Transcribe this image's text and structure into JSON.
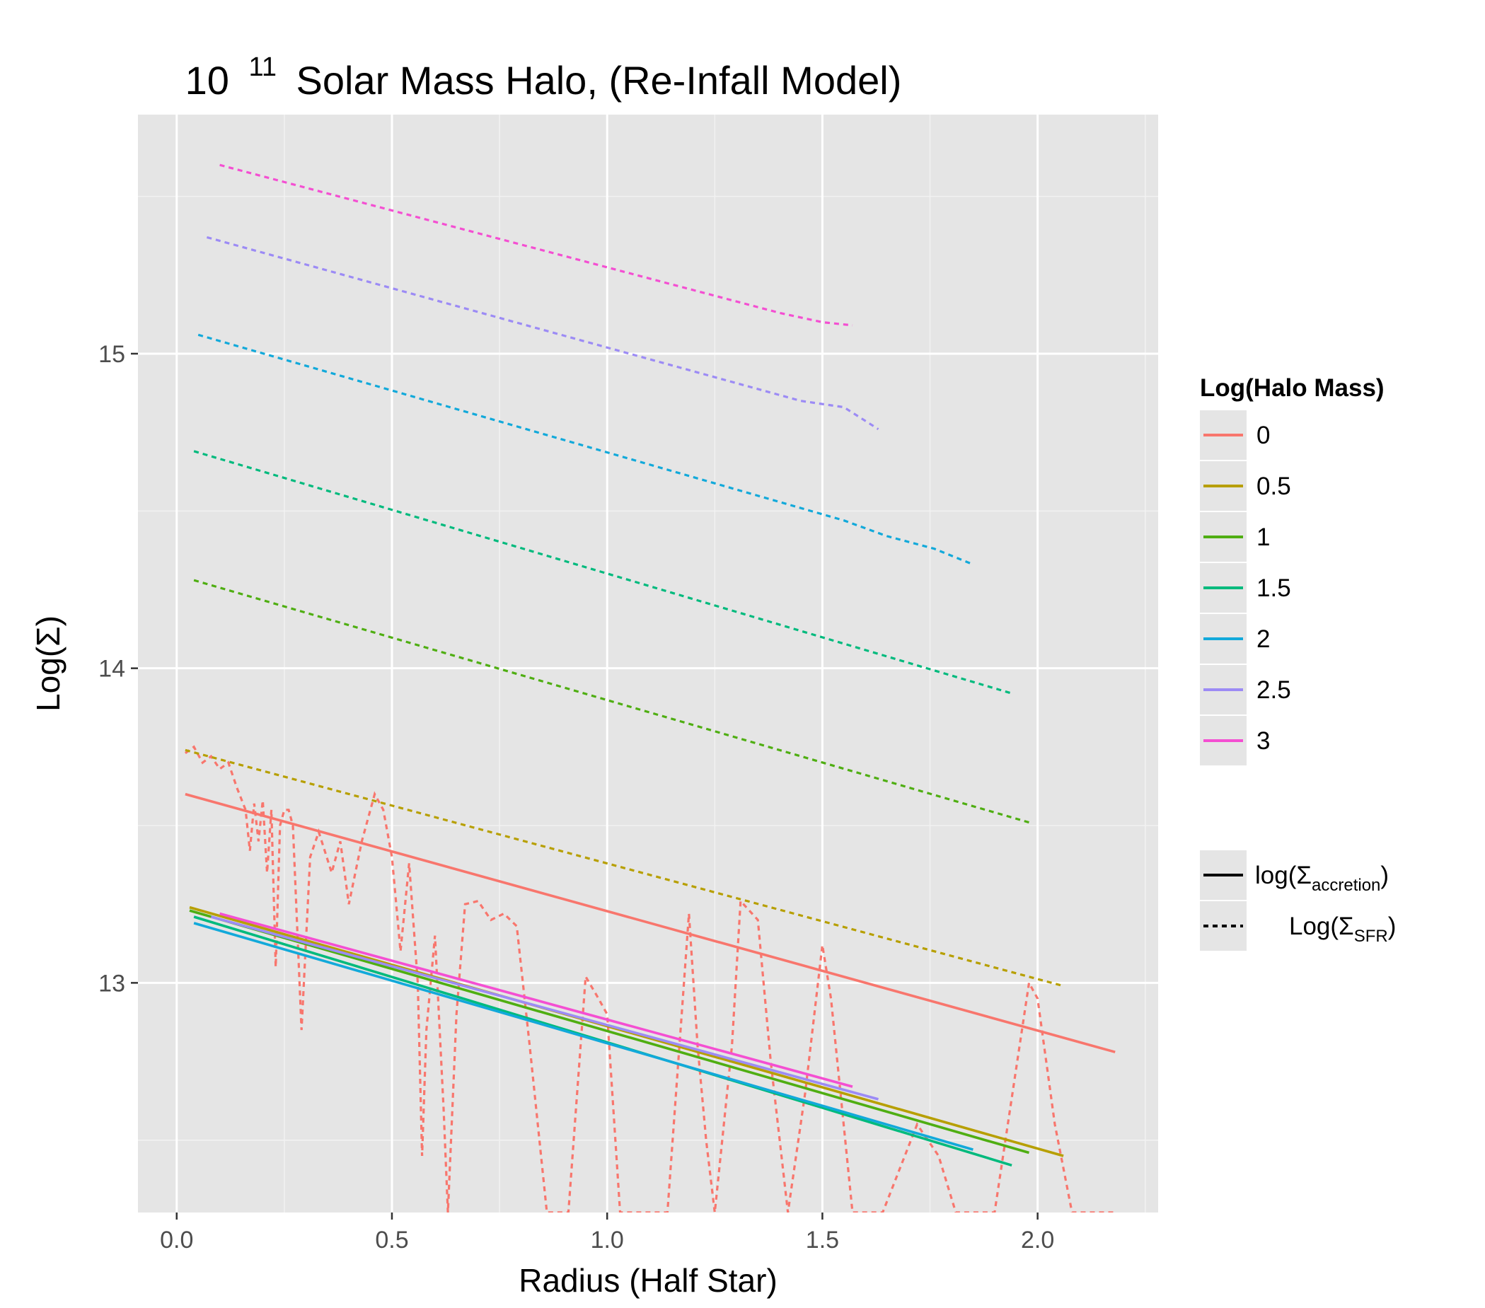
{
  "chart_data": {
    "type": "line",
    "title": {
      "base": "10",
      "exponent": "11",
      "rest": "Solar Mass Halo, (Re-Infall Model)"
    },
    "xlabel": "Radius (Half Star)",
    "ylabel": "Log(Σ)",
    "xlim": [
      -0.09,
      2.28
    ],
    "ylim": [
      12.27,
      15.76
    ],
    "x_ticks": [
      0.0,
      0.5,
      1.0,
      1.5,
      2.0
    ],
    "x_tick_labels": [
      "0.0",
      "0.5",
      "1.0",
      "1.5",
      "2.0"
    ],
    "y_ticks": [
      13,
      14,
      15
    ],
    "y_tick_labels": [
      "13",
      "14",
      "15"
    ],
    "grid": true,
    "legend_position": "right",
    "legend_title": "Log(Halo Mass)",
    "series": [
      {
        "name": "0",
        "color": "#F8766D",
        "accretion": [
          [
            0.02,
            13.6
          ],
          [
            2.18,
            12.78
          ]
        ],
        "sfr": [
          [
            0.02,
            13.73
          ],
          [
            0.04,
            13.75
          ],
          [
            0.06,
            13.7
          ],
          [
            0.08,
            13.72
          ],
          [
            0.1,
            13.68
          ],
          [
            0.12,
            13.7
          ],
          [
            0.14,
            13.62
          ],
          [
            0.16,
            13.55
          ],
          [
            0.17,
            13.42
          ],
          [
            0.18,
            13.57
          ],
          [
            0.19,
            13.45
          ],
          [
            0.2,
            13.58
          ],
          [
            0.21,
            13.35
          ],
          [
            0.22,
            13.55
          ],
          [
            0.23,
            13.05
          ],
          [
            0.24,
            13.5
          ],
          [
            0.25,
            13.55
          ],
          [
            0.26,
            13.55
          ],
          [
            0.27,
            13.5
          ],
          [
            0.29,
            12.85
          ],
          [
            0.31,
            13.4
          ],
          [
            0.33,
            13.48
          ],
          [
            0.36,
            13.35
          ],
          [
            0.38,
            13.45
          ],
          [
            0.4,
            13.25
          ],
          [
            0.43,
            13.45
          ],
          [
            0.46,
            13.6
          ],
          [
            0.48,
            13.55
          ],
          [
            0.5,
            13.4
          ],
          [
            0.52,
            13.1
          ],
          [
            0.54,
            13.38
          ],
          [
            0.56,
            13.0
          ],
          [
            0.57,
            12.45
          ],
          [
            0.58,
            12.85
          ],
          [
            0.6,
            13.15
          ],
          [
            0.62,
            12.6
          ],
          [
            0.63,
            12.27
          ],
          [
            0.65,
            12.9
          ],
          [
            0.67,
            13.25
          ],
          [
            0.7,
            13.26
          ],
          [
            0.73,
            13.2
          ],
          [
            0.76,
            13.22
          ],
          [
            0.79,
            13.18
          ],
          [
            0.82,
            12.8
          ],
          [
            0.86,
            12.27
          ],
          [
            0.91,
            12.27
          ],
          [
            0.95,
            13.02
          ],
          [
            0.98,
            12.95
          ],
          [
            1.0,
            12.9
          ],
          [
            1.03,
            12.27
          ],
          [
            1.14,
            12.27
          ],
          [
            1.19,
            13.22
          ],
          [
            1.21,
            12.8
          ],
          [
            1.23,
            12.5
          ],
          [
            1.25,
            12.27
          ],
          [
            1.29,
            12.8
          ],
          [
            1.31,
            13.26
          ],
          [
            1.35,
            13.2
          ],
          [
            1.38,
            12.75
          ],
          [
            1.42,
            12.27
          ],
          [
            1.46,
            12.65
          ],
          [
            1.5,
            13.12
          ],
          [
            1.52,
            12.95
          ],
          [
            1.57,
            12.27
          ],
          [
            1.64,
            12.27
          ],
          [
            1.72,
            12.55
          ],
          [
            1.77,
            12.45
          ],
          [
            1.81,
            12.27
          ],
          [
            1.9,
            12.27
          ],
          [
            1.98,
            13.0
          ],
          [
            2.0,
            12.95
          ],
          [
            2.04,
            12.55
          ],
          [
            2.08,
            12.27
          ],
          [
            2.18,
            12.27
          ]
        ]
      },
      {
        "name": "0.5",
        "color": "#B79F00",
        "accretion": [
          [
            0.03,
            13.24
          ],
          [
            2.06,
            12.45
          ]
        ],
        "sfr": [
          [
            0.02,
            13.74
          ],
          [
            2.06,
            12.99
          ]
        ]
      },
      {
        "name": "1",
        "color": "#4FAE12",
        "accretion": [
          [
            0.03,
            13.23
          ],
          [
            1.98,
            12.46
          ]
        ],
        "sfr": [
          [
            0.04,
            14.28
          ],
          [
            1.98,
            13.51
          ]
        ]
      },
      {
        "name": "1.5",
        "color": "#00BA7D",
        "accretion": [
          [
            0.04,
            13.21
          ],
          [
            1.94,
            12.42
          ]
        ],
        "sfr": [
          [
            0.04,
            14.69
          ],
          [
            1.94,
            13.92
          ]
        ]
      },
      {
        "name": "2",
        "color": "#12A9DA",
        "accretion": [
          [
            0.04,
            13.19
          ],
          [
            1.85,
            12.47
          ]
        ],
        "sfr": [
          [
            0.05,
            15.06
          ],
          [
            1.55,
            14.47
          ],
          [
            1.65,
            14.42
          ],
          [
            1.76,
            14.38
          ],
          [
            1.85,
            14.33
          ]
        ]
      },
      {
        "name": "2.5",
        "color": "#9C8BF5",
        "accretion": [
          [
            0.08,
            13.21
          ],
          [
            1.63,
            12.63
          ]
        ],
        "sfr": [
          [
            0.07,
            15.37
          ],
          [
            1.45,
            14.85
          ],
          [
            1.55,
            14.83
          ],
          [
            1.63,
            14.76
          ]
        ]
      },
      {
        "name": "3",
        "color": "#F44FD2",
        "accretion": [
          [
            0.1,
            13.22
          ],
          [
            1.57,
            12.67
          ]
        ],
        "sfr": [
          [
            0.1,
            15.6
          ],
          [
            1.4,
            15.13
          ],
          [
            1.5,
            15.1
          ],
          [
            1.57,
            15.09
          ]
        ]
      }
    ],
    "linetype_legend": [
      {
        "style": "solid",
        "label": "log(Σ",
        "subscript": "accretion",
        "close": ")"
      },
      {
        "style": "dashed",
        "label": "Log(Σ",
        "subscript": "SFR",
        "close": ")"
      }
    ]
  }
}
